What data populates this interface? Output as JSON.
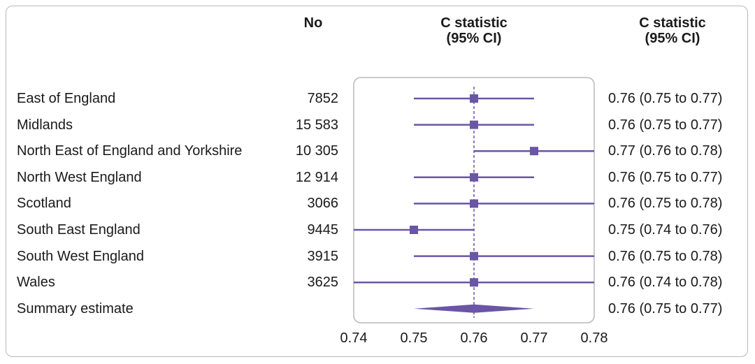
{
  "columns": {
    "no": "No",
    "cstat_line1": "C statistic",
    "cstat_line2": "(95% CI)",
    "cstat2_line1": "C statistic",
    "cstat2_line2": "(95% CI)"
  },
  "chart_data": {
    "type": "forest",
    "xlim": [
      0.74,
      0.78
    ],
    "x_ticks": [
      "0.74",
      "0.75",
      "0.76",
      "0.77",
      "0.78"
    ],
    "reference_line": 0.76,
    "colors": {
      "marker": "#6a55a6",
      "frame": "#b8b8b8",
      "reference": "#6a55a6"
    },
    "rows": [
      {
        "label": "East of England",
        "n": "7852",
        "estimate": 0.76,
        "lower": 0.75,
        "upper": 0.77,
        "ci_text": "0.76 (0.75 to 0.77)"
      },
      {
        "label": "Midlands",
        "n": "15 583",
        "estimate": 0.76,
        "lower": 0.75,
        "upper": 0.77,
        "ci_text": "0.76 (0.75 to 0.77)"
      },
      {
        "label": "North East of England and Yorkshire",
        "n": "10 305",
        "estimate": 0.77,
        "lower": 0.76,
        "upper": 0.78,
        "ci_text": "0.77 (0.76 to 0.78)"
      },
      {
        "label": "North West England",
        "n": "12 914",
        "estimate": 0.76,
        "lower": 0.75,
        "upper": 0.77,
        "ci_text": "0.76 (0.75 to 0.77)"
      },
      {
        "label": "Scotland",
        "n": "3066",
        "estimate": 0.76,
        "lower": 0.75,
        "upper": 0.78,
        "ci_text": "0.76 (0.75 to 0.78)"
      },
      {
        "label": "South East England",
        "n": "9445",
        "estimate": 0.75,
        "lower": 0.74,
        "upper": 0.76,
        "ci_text": "0.75 (0.74 to 0.76)"
      },
      {
        "label": "South West England",
        "n": "3915",
        "estimate": 0.76,
        "lower": 0.75,
        "upper": 0.78,
        "ci_text": "0.76 (0.75 to 0.78)"
      },
      {
        "label": "Wales",
        "n": "3625",
        "estimate": 0.76,
        "lower": 0.74,
        "upper": 0.78,
        "ci_text": "0.76 (0.74 to 0.78)"
      }
    ],
    "summary": {
      "label": "Summary estimate",
      "n": "",
      "estimate": 0.76,
      "lower": 0.75,
      "upper": 0.77,
      "ci_text": "0.76 (0.75 to 0.77)"
    }
  }
}
